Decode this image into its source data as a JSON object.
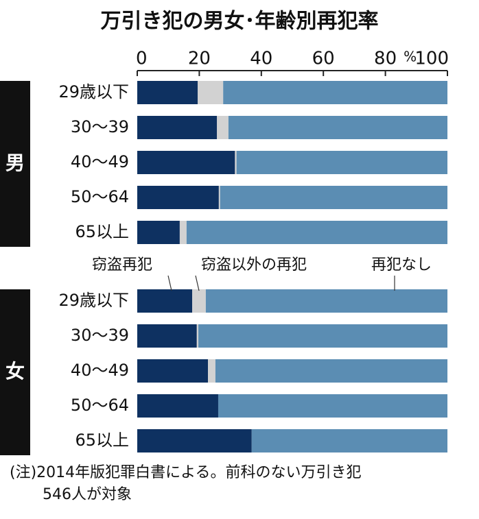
{
  "chart_data": {
    "type": "stacked_bar",
    "title": "万引き犯の男女･年齢別再犯率",
    "xlim": [
      0,
      100
    ],
    "xticks": [
      0,
      20,
      40,
      60,
      80,
      100
    ],
    "x_unit": "%",
    "series": [
      {
        "name": "窃盗再犯",
        "color": "#0e3161"
      },
      {
        "name": "窃盗以外の再犯",
        "color": "#d2d2d2"
      },
      {
        "name": "再犯なし",
        "color": "#5b8db3"
      }
    ],
    "groups": [
      {
        "label": "男",
        "categories": [
          "29歳以下",
          "30～39",
          "40～49",
          "50～64",
          "65以上"
        ],
        "values": [
          [
            19.5,
            25.7,
            31.5,
            26.3,
            13.7
          ],
          [
            8.2,
            3.7,
            0.5,
            0.4,
            2.2
          ],
          [
            72.3,
            70.6,
            68,
            73.3,
            84.1
          ]
        ]
      },
      {
        "label": "女",
        "categories": [
          "29歳以下",
          "30～39",
          "40～49",
          "50～64",
          "65以上"
        ],
        "values": [
          [
            17.7,
            19.2,
            22.8,
            26.1,
            36.9
          ],
          [
            4.4,
            0.5,
            2.4,
            0,
            0
          ],
          [
            77.9,
            80.3,
            74.8,
            73.9,
            63.1
          ]
        ]
      }
    ],
    "note": [
      "(注)2014年版犯罪白書による。前科のない万引き犯",
      "546人が対象"
    ]
  }
}
